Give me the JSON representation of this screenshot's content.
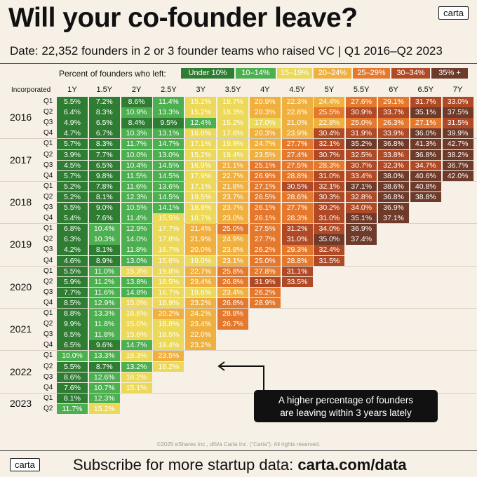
{
  "header": {
    "title": "Will your co-founder leave?",
    "logo": "carta",
    "subtitle": "Date: 22,352 founders in 2 or 3 founder teams  who raised VC | Q1 2016–Q2 2023"
  },
  "legend": {
    "label": "Percent of founders  who left:",
    "items": [
      {
        "label": "Under 10%",
        "bg": "#2e7d32",
        "fg": "#ffffff"
      },
      {
        "label": "10–14%",
        "bg": "#4caf50",
        "fg": "#ffffff"
      },
      {
        "label": "15–19%",
        "bg": "#ecd95a",
        "fg": "#ffffff"
      },
      {
        "label": "20–24%",
        "bg": "#f0b040",
        "fg": "#ffffff"
      },
      {
        "label": "25–29%",
        "bg": "#e4792e",
        "fg": "#ffffff"
      },
      {
        "label": "30–34%",
        "bg": "#b04a26",
        "fg": "#ffffff"
      },
      {
        "label": "35% +",
        "bg": "#6e3a2a",
        "fg": "#ffffff"
      }
    ]
  },
  "chart_data": {
    "type": "table",
    "row_header": "Incorporated",
    "columns": [
      "1Y",
      "1.5Y",
      "2Y",
      "2.5Y",
      "3Y",
      "3.5Y",
      "4Y",
      "4.5Y",
      "5Y",
      "5.5Y",
      "6Y",
      "6.5Y",
      "7Y"
    ],
    "years": [
      {
        "year": "2016",
        "rows": [
          {
            "q": "Q1",
            "values": [
              "5.5%",
              "7.2%",
              "8.6%",
              "11.4%",
              "15.2%",
              "18.7%",
              "20.9%",
              "22.3%",
              "24.4%",
              "27.6%",
              "29.1%",
              "31.7%",
              "33.0%"
            ]
          },
          {
            "q": "Q2",
            "values": [
              "6.4%",
              "8.3%",
              "10.9%",
              "13.3%",
              "15.2%",
              "18.3%",
              "20.3%",
              "22.8%",
              "25.5%",
              "30.9%",
              "33.7%",
              "35.1%",
              "37.5%"
            ]
          },
          {
            "q": "Q3",
            "values": [
              "4.9%",
              "6.5%",
              "8.4%",
              "9.5%",
              "12.4%",
              "15.2%",
              "17.0%",
              "21.0%",
              "22.8%",
              "25.0%",
              "26.3%",
              "27.1%",
              "31.5%"
            ]
          },
          {
            "q": "Q4",
            "values": [
              "4.7%",
              "6.7%",
              "10.3%",
              "13.1%",
              "16.0%",
              "17.8%",
              "20.3%",
              "23.9%",
              "30.4%",
              "31.9%",
              "33.9%",
              "36.0%",
              "39.9%"
            ]
          }
        ]
      },
      {
        "year": "2017",
        "rows": [
          {
            "q": "Q1",
            "values": [
              "5.7%",
              "8.3%",
              "11.7%",
              "14.7%",
              "17.1%",
              "19.8%",
              "24.7%",
              "27.7%",
              "32.1%",
              "35.2%",
              "36.8%",
              "41.3%",
              "42.7%"
            ]
          },
          {
            "q": "Q2",
            "values": [
              "3.9%",
              "7.7%",
              "10.0%",
              "13.0%",
              "15.2%",
              "19.4%",
              "23.5%",
              "27.4%",
              "30.7%",
              "32.5%",
              "33.8%",
              "36.8%",
              "38.2%"
            ]
          },
          {
            "q": "Q3",
            "values": [
              "4.5%",
              "6.5%",
              "10.4%",
              "14.5%",
              "16.9%",
              "21.1%",
              "25.1%",
              "27.5%",
              "28.3%",
              "30.7%",
              "32.3%",
              "34.7%",
              "36.7%"
            ]
          },
          {
            "q": "Q4",
            "values": [
              "5.7%",
              "9.8%",
              "11.5%",
              "14.5%",
              "17.9%",
              "22.7%",
              "26.9%",
              "28.8%",
              "31.0%",
              "33.4%",
              "38.0%",
              "40.6%",
              "42.0%"
            ]
          }
        ]
      },
      {
        "year": "2018",
        "rows": [
          {
            "q": "Q1",
            "values": [
              "5.2%",
              "7.8%",
              "11.6%",
              "13.6%",
              "17.1%",
              "21.8%",
              "27.1%",
              "30.5%",
              "32.1%",
              "37.1%",
              "38.6%",
              "40.8%"
            ]
          },
          {
            "q": "Q2",
            "values": [
              "5.2%",
              "8.1%",
              "12.3%",
              "14.5%",
              "19.5%",
              "23.7%",
              "26.5%",
              "28.6%",
              "30.3%",
              "32.8%",
              "36.8%",
              "38.8%"
            ]
          },
          {
            "q": "Q3",
            "values": [
              "5.5%",
              "9.0%",
              "10.5%",
              "14.1%",
              "18.9%",
              "23.7%",
              "26.1%",
              "27.7%",
              "30.2%",
              "34.0%",
              "36.9%"
            ]
          },
          {
            "q": "Q4",
            "values": [
              "5.4%",
              "7.6%",
              "11.4%",
              "15.5%",
              "18.7%",
              "23.0%",
              "26.1%",
              "28.3%",
              "31.0%",
              "35.1%",
              "37.1%"
            ]
          }
        ]
      },
      {
        "year": "2019",
        "rows": [
          {
            "q": "Q1",
            "values": [
              "6.8%",
              "10.4%",
              "12.9%",
              "17.7%",
              "21.4%",
              "25.0%",
              "27.5%",
              "31.2%",
              "34.0%",
              "36.9%"
            ]
          },
          {
            "q": "Q2",
            "values": [
              "6.3%",
              "10.3%",
              "14.0%",
              "17.8%",
              "21.9%",
              "24.9%",
              "27.7%",
              "31.0%",
              "35.0%",
              "37.4%"
            ]
          },
          {
            "q": "Q3",
            "values": [
              "4.2%",
              "8.1%",
              "11.8%",
              "16.7%",
              "20.0%",
              "23.8%",
              "26.2%",
              "29.3%",
              "32.4%"
            ]
          },
          {
            "q": "Q4",
            "values": [
              "4.6%",
              "8.9%",
              "13.0%",
              "15.6%",
              "19.0%",
              "23.1%",
              "25.0%",
              "28.8%",
              "31.5%"
            ]
          }
        ]
      },
      {
        "year": "2020",
        "rows": [
          {
            "q": "Q1",
            "values": [
              "5.5%",
              "11.0%",
              "15.3%",
              "19.8%",
              "22.7%",
              "25.8%",
              "27.8%",
              "31.1%"
            ]
          },
          {
            "q": "Q2",
            "values": [
              "5.9%",
              "11.2%",
              "13.8%",
              "18.5%",
              "23.4%",
              "26.8%",
              "31.9%",
              "33.5%"
            ]
          },
          {
            "q": "Q3",
            "values": [
              "7.7%",
              "11.6%",
              "14.8%",
              "16.7%",
              "19.6%",
              "23.4%",
              "26.2%"
            ]
          },
          {
            "q": "Q4",
            "values": [
              "8.5%",
              "12.9%",
              "15.0%",
              "18.9%",
              "23.2%",
              "26.8%",
              "28.9%"
            ]
          }
        ]
      },
      {
        "year": "2021",
        "rows": [
          {
            "q": "Q1",
            "values": [
              "8.8%",
              "13.3%",
              "16.6%",
              "20.2%",
              "24.2%",
              "28.8%"
            ]
          },
          {
            "q": "Q2",
            "values": [
              "9.9%",
              "11.8%",
              "15.0%",
              "18.8%",
              "23.4%",
              "26.7%"
            ]
          },
          {
            "q": "Q3",
            "values": [
              "6.5%",
              "11.8%",
              "15.6%",
              "18.5%",
              "22.0%"
            ]
          },
          {
            "q": "Q4",
            "values": [
              "6.5%",
              "9.6%",
              "14.7%",
              "19.4%",
              "23.2%"
            ]
          }
        ]
      },
      {
        "year": "2022",
        "rows": [
          {
            "q": "Q1",
            "values": [
              "10.0%",
              "13.3%",
              "18.3%",
              "23.5%"
            ]
          },
          {
            "q": "Q2",
            "values": [
              "5.5%",
              "8.7%",
              "13.2%",
              "16.2%"
            ]
          },
          {
            "q": "Q3",
            "values": [
              "8.6%",
              "12.6%",
              "16.2%"
            ]
          },
          {
            "q": "Q4",
            "values": [
              "7.6%",
              "10.7%",
              "15.1%"
            ]
          }
        ]
      },
      {
        "year": "2023",
        "rows": [
          {
            "q": "Q1",
            "values": [
              "8.1%",
              "12.3%"
            ]
          },
          {
            "q": "Q2",
            "values": [
              "11.7%",
              "15.2%"
            ]
          }
        ]
      }
    ],
    "color_scale": [
      {
        "max": 10,
        "color": "#2e7d32"
      },
      {
        "max": 15,
        "color": "#4caf50"
      },
      {
        "max": 20,
        "color": "#ecd95a"
      },
      {
        "max": 25,
        "color": "#f0b040"
      },
      {
        "max": 30,
        "color": "#e4792e"
      },
      {
        "max": 35,
        "color": "#b04a26"
      },
      {
        "max": 999,
        "color": "#6e3a2a"
      }
    ]
  },
  "annotation": {
    "line1": "A higher percentage of founders",
    "line2": "are leaving within 3 years lately"
  },
  "copyright": "©2025 eShares Inc., d/b/a Carta Inc. (“Carta”). All rights reserved.",
  "footer": {
    "logo": "carta",
    "text": "Subscribe for more startup data: ",
    "link": "carta.com/data"
  }
}
